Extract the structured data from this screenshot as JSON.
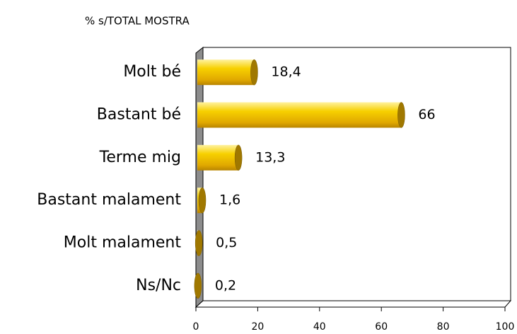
{
  "chart_data": {
    "type": "bar",
    "orientation": "horizontal",
    "title": "% s/TOTAL MOSTRA",
    "categories": [
      "Molt bé",
      "Bastant bé",
      "Terme mig",
      "Bastant malament",
      "Molt malament",
      "Ns/Nc"
    ],
    "values": [
      18.4,
      66,
      13.3,
      1.6,
      0.5,
      0.2
    ],
    "value_labels": [
      "18,4",
      "66",
      "13,3",
      "1,6",
      "0,5",
      "0,2"
    ],
    "color": "#f5c400",
    "xlim": [
      0,
      100
    ],
    "xticks": [
      0,
      20,
      40,
      60,
      80,
      100
    ]
  }
}
